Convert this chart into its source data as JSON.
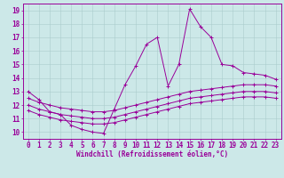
{
  "xlabel": "Windchill (Refroidissement éolien,°C)",
  "line_color": "#990099",
  "bg_color": "#cce8e8",
  "grid_color": "#aacccc",
  "xlim_min": -0.5,
  "xlim_max": 23.5,
  "ylim_min": 9.5,
  "ylim_max": 19.5,
  "xticks": [
    0,
    1,
    2,
    3,
    4,
    5,
    6,
    7,
    8,
    9,
    10,
    11,
    12,
    13,
    14,
    15,
    16,
    17,
    18,
    19,
    20,
    21,
    22,
    23
  ],
  "yticks": [
    10,
    11,
    12,
    13,
    14,
    15,
    16,
    17,
    18,
    19
  ],
  "line1_x": [
    0,
    1,
    2,
    3,
    4,
    5,
    6,
    7,
    8,
    9,
    10,
    11,
    12,
    13,
    14,
    15,
    16,
    17,
    18,
    19,
    20,
    21,
    22,
    23
  ],
  "line1_y": [
    13.0,
    12.4,
    11.5,
    11.3,
    10.5,
    10.2,
    10.0,
    9.9,
    11.7,
    13.5,
    14.9,
    16.5,
    17.0,
    13.4,
    15.0,
    19.1,
    17.8,
    17.0,
    15.0,
    14.9,
    14.4,
    14.3,
    14.2,
    13.9
  ],
  "line2_x": [
    0,
    1,
    2,
    3,
    4,
    5,
    6,
    7,
    8,
    9,
    10,
    11,
    12,
    13,
    14,
    15,
    16,
    17,
    18,
    19,
    20,
    21,
    22,
    23
  ],
  "line2_y": [
    12.5,
    12.2,
    12.0,
    11.8,
    11.7,
    11.6,
    11.5,
    11.5,
    11.6,
    11.8,
    12.0,
    12.2,
    12.4,
    12.6,
    12.8,
    13.0,
    13.1,
    13.2,
    13.3,
    13.4,
    13.5,
    13.5,
    13.5,
    13.4
  ],
  "line3_x": [
    0,
    1,
    2,
    3,
    4,
    5,
    6,
    7,
    8,
    9,
    10,
    11,
    12,
    13,
    14,
    15,
    16,
    17,
    18,
    19,
    20,
    21,
    22,
    23
  ],
  "line3_y": [
    12.0,
    11.7,
    11.5,
    11.3,
    11.2,
    11.1,
    11.0,
    11.0,
    11.1,
    11.3,
    11.5,
    11.7,
    11.9,
    12.1,
    12.3,
    12.5,
    12.6,
    12.7,
    12.8,
    12.9,
    13.0,
    13.0,
    13.0,
    12.9
  ],
  "line4_x": [
    0,
    1,
    2,
    3,
    4,
    5,
    6,
    7,
    8,
    9,
    10,
    11,
    12,
    13,
    14,
    15,
    16,
    17,
    18,
    19,
    20,
    21,
    22,
    23
  ],
  "line4_y": [
    11.6,
    11.3,
    11.1,
    10.9,
    10.8,
    10.7,
    10.6,
    10.6,
    10.7,
    10.9,
    11.1,
    11.3,
    11.5,
    11.7,
    11.9,
    12.1,
    12.2,
    12.3,
    12.4,
    12.5,
    12.6,
    12.6,
    12.6,
    12.5
  ],
  "tick_fontsize": 5.5,
  "xlabel_fontsize": 5.5,
  "linewidth": 0.7,
  "markersize": 3.0,
  "markeredgewidth": 0.7
}
